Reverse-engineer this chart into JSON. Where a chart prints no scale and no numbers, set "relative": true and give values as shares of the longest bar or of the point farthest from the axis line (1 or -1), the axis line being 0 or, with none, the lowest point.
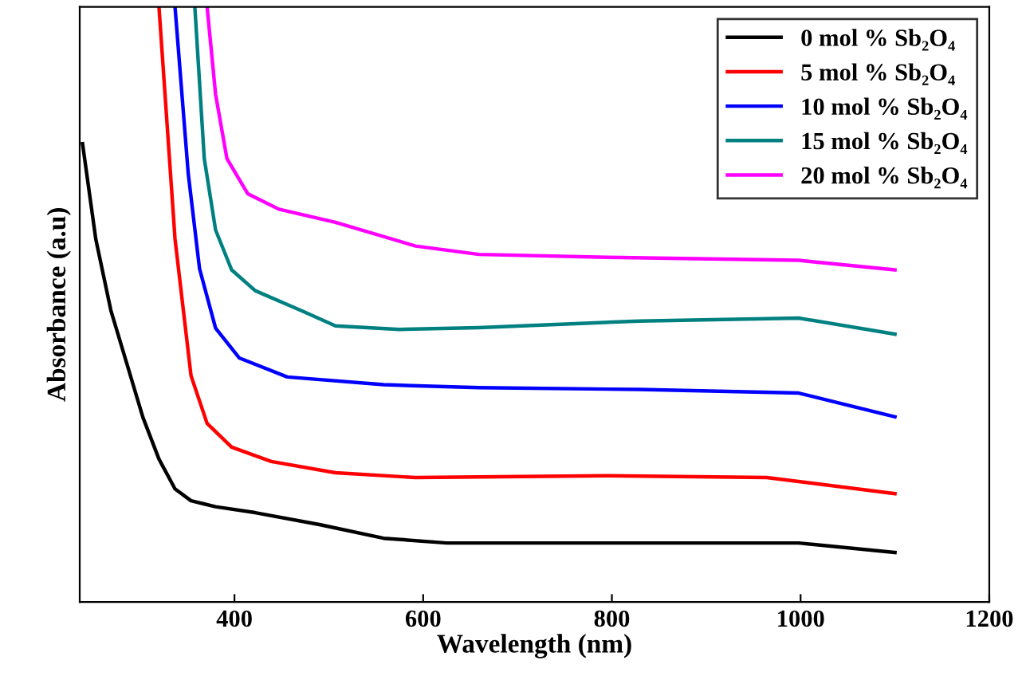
{
  "chart_data": {
    "type": "line",
    "relative": true,
    "xlabel": "Wavelength (nm)",
    "ylabel": "Absorbance (a.u)",
    "xlim": [
      236,
      1200
    ],
    "xticks": [
      400,
      600,
      800,
      1000,
      1200
    ],
    "legend": "top right",
    "line_style": "solid",
    "marker": "none",
    "grid": false,
    "tick_labels": "x",
    "series": [
      {
        "name": "0 mol % Sb₂O₄",
        "color": "#000000",
        "x": [
          239,
          253,
          269,
          286,
          303,
          320,
          337,
          354,
          380,
          422,
          490,
          558,
          625,
          795,
          998,
          1100
        ],
        "values": [
          0.77,
          0.61,
          0.49,
          0.4,
          0.31,
          0.24,
          0.19,
          0.17,
          0.16,
          0.15,
          0.13,
          0.107,
          0.099,
          0.099,
          0.099,
          0.083
        ]
      },
      {
        "name": "5 mol % Sb₂O₄",
        "color": "#ff0000",
        "x": [
          320,
          337,
          354,
          371,
          397,
          439,
          507,
          592,
          795,
          964,
          1100
        ],
        "values": [
          1.0,
          0.61,
          0.38,
          0.3,
          0.26,
          0.236,
          0.217,
          0.209,
          0.212,
          0.209,
          0.182
        ]
      },
      {
        "name": "10 mol % Sb₂O₄",
        "color": "#0000ff",
        "x": [
          337,
          351,
          363,
          380,
          405,
          456,
          558,
          659,
          829,
          998,
          1100
        ],
        "values": [
          1.0,
          0.72,
          0.56,
          0.46,
          0.41,
          0.378,
          0.365,
          0.36,
          0.357,
          0.351,
          0.311
        ]
      },
      {
        "name": "15 mol % Sb₂O₄",
        "color": "#008080",
        "x": [
          358,
          368,
          380,
          397,
          422,
          473,
          507,
          575,
          659,
          829,
          998,
          1100
        ],
        "values": [
          1.0,
          0.745,
          0.625,
          0.558,
          0.523,
          0.488,
          0.464,
          0.458,
          0.461,
          0.472,
          0.477,
          0.45
        ]
      },
      {
        "name": "20 mol % Sb₂O₄",
        "color": "#ff00ff",
        "x": [
          371,
          380,
          392,
          414,
          447,
          507,
          592,
          659,
          795,
          998,
          1100
        ],
        "values": [
          1.0,
          0.853,
          0.745,
          0.686,
          0.66,
          0.638,
          0.598,
          0.584,
          0.579,
          0.574,
          0.558
        ]
      }
    ]
  }
}
